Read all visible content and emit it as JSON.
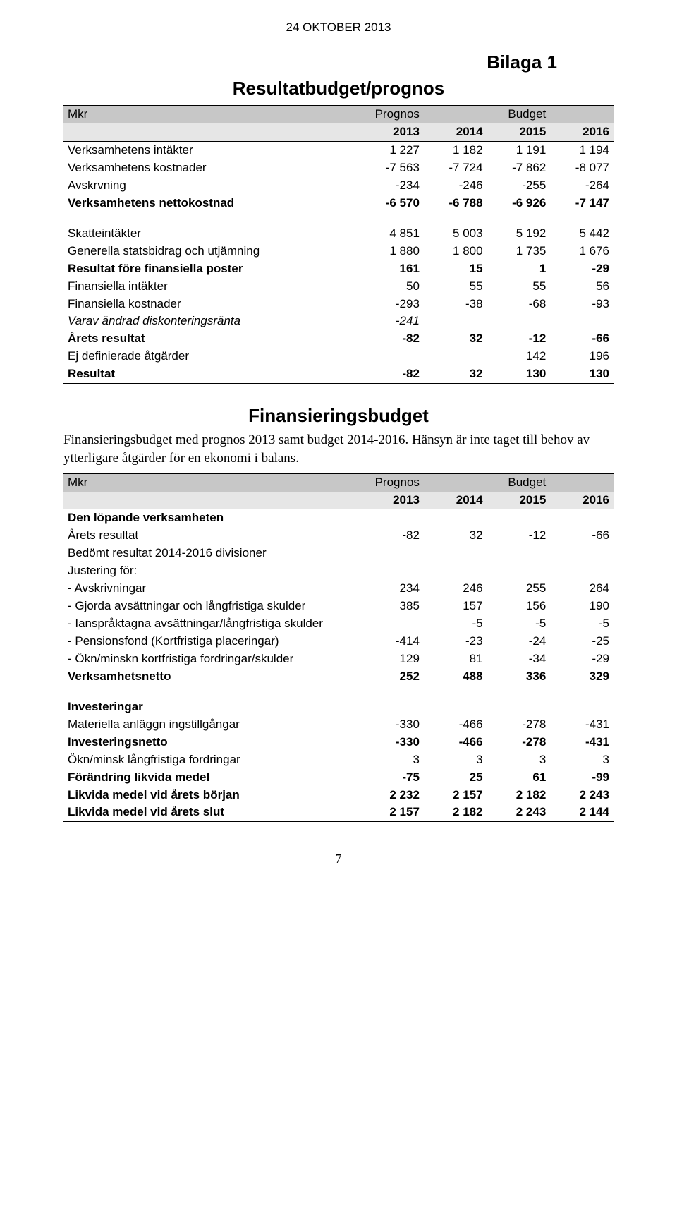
{
  "doc_date": "24 OKTOBER 2013",
  "appendix_label": "Bilaga 1",
  "title1": "Resultatbudget/prognos",
  "header": {
    "mkr": "Mkr",
    "prognos": "Prognos",
    "budget": "Budget",
    "years": [
      "2013",
      "2014",
      "2015",
      "2016"
    ]
  },
  "table1_rows": [
    {
      "label": "Verksamhetens intäkter",
      "v": [
        "1 227",
        "1 182",
        "1 191",
        "1 194"
      ],
      "style": ""
    },
    {
      "label": "Verksamhetens kostnader",
      "v": [
        "-7 563",
        "-7 724",
        "-7 862",
        "-8 077"
      ],
      "style": ""
    },
    {
      "label": "Avskrvning",
      "v": [
        "-234",
        "-246",
        "-255",
        "-264"
      ],
      "style": ""
    },
    {
      "label": "Verksamhetens nettokostnad",
      "v": [
        "-6 570",
        "-6 788",
        "-6 926",
        "-7 147"
      ],
      "style": "bold"
    },
    {
      "label": "",
      "v": [
        "",
        "",
        "",
        ""
      ],
      "style": "spacer"
    },
    {
      "label": "Skatteintäkter",
      "v": [
        "4 851",
        "5 003",
        "5 192",
        "5 442"
      ],
      "style": ""
    },
    {
      "label": "Generella statsbidrag och utjämning",
      "v": [
        "1 880",
        "1 800",
        "1 735",
        "1 676"
      ],
      "style": ""
    },
    {
      "label": "Resultat före finansiella poster",
      "v": [
        "161",
        "15",
        "1",
        "-29"
      ],
      "style": "bold"
    },
    {
      "label": "Finansiella intäkter",
      "v": [
        "50",
        "55",
        "55",
        "56"
      ],
      "style": ""
    },
    {
      "label": "Finansiella kostnader",
      "v": [
        "-293",
        "-38",
        "-68",
        "-93"
      ],
      "style": ""
    },
    {
      "label": " Varav ändrad diskonteringsränta",
      "v": [
        "-241",
        "",
        "",
        ""
      ],
      "style": "italic"
    },
    {
      "label": "Årets resultat",
      "v": [
        "-82",
        "32",
        "-12",
        "-66"
      ],
      "style": "bold"
    },
    {
      "label": "Ej definierade åtgärder",
      "v": [
        "",
        "",
        "142",
        "196"
      ],
      "style": ""
    },
    {
      "label": "Resultat",
      "v": [
        "-82",
        "32",
        "130",
        "130"
      ],
      "style": "bold bottom"
    }
  ],
  "title2": "Finansieringsbudget",
  "paragraph": "Finansieringsbudget med prognos 2013 samt budget 2014-2016. Hänsyn är inte taget till behov av ytterligare åtgärder för en ekonomi i balans.",
  "table2_rows": [
    {
      "label": "Den löpande verksamheten",
      "v": [
        "",
        "",
        "",
        ""
      ],
      "style": "bold"
    },
    {
      "label": "Årets resultat",
      "v": [
        "-82",
        "32",
        "-12",
        "-66"
      ],
      "style": ""
    },
    {
      "label": "Bedömt resultat 2014-2016 divisioner",
      "v": [
        "",
        "",
        "",
        ""
      ],
      "style": ""
    },
    {
      "label": "Justering för:",
      "v": [
        "",
        "",
        "",
        ""
      ],
      "style": ""
    },
    {
      "label": "- Avskrivningar",
      "v": [
        "234",
        "246",
        "255",
        "264"
      ],
      "style": ""
    },
    {
      "label": "- Gjorda avsättningar och långfristiga skulder",
      "v": [
        "385",
        "157",
        "156",
        "190"
      ],
      "style": ""
    },
    {
      "label": "- Ianspråktagna avsättningar/långfristiga skulder",
      "v": [
        "",
        "-5",
        "-5",
        "-5"
      ],
      "style": ""
    },
    {
      "label": "- Pensionsfond (Kortfristiga placeringar)",
      "v": [
        "-414",
        "-23",
        "-24",
        "-25"
      ],
      "style": ""
    },
    {
      "label": "- Ökn/minskn kortfristiga fordringar/skulder",
      "v": [
        "129",
        "81",
        "-34",
        "-29"
      ],
      "style": ""
    },
    {
      "label": "Verksamhetsnetto",
      "v": [
        "252",
        "488",
        "336",
        "329"
      ],
      "style": "bold"
    },
    {
      "label": "",
      "v": [
        "",
        "",
        "",
        ""
      ],
      "style": "spacer"
    },
    {
      "label": "Investeringar",
      "v": [
        "",
        "",
        "",
        ""
      ],
      "style": "bold"
    },
    {
      "label": "Materiella anläggn ingstillgångar",
      "v": [
        "-330",
        "-466",
        "-278",
        "-431"
      ],
      "style": ""
    },
    {
      "label": "Investeringsnetto",
      "v": [
        "-330",
        "-466",
        "-278",
        "-431"
      ],
      "style": "bold"
    },
    {
      "label": "Ökn/minsk långfristiga fordringar",
      "v": [
        "3",
        "3",
        "3",
        "3"
      ],
      "style": ""
    },
    {
      "label": "Förändring likvida medel",
      "v": [
        "-75",
        "25",
        "61",
        "-99"
      ],
      "style": "bold"
    },
    {
      "label": "Likvida medel vid årets början",
      "v": [
        "2 232",
        "2 157",
        "2 182",
        "2 243"
      ],
      "style": "bold"
    },
    {
      "label": "Likvida medel vid årets slut",
      "v": [
        "2 157",
        "2 182",
        "2 243",
        "2 144"
      ],
      "style": "bold bottom"
    }
  ],
  "page_number": "7",
  "colors": {
    "header_bg1": "#c7c7c7",
    "header_bg2": "#e6e6e6",
    "text": "#000000",
    "border": "#000000",
    "page_bg": "#ffffff"
  },
  "fonts": {
    "body_family": "Arial, Helvetica, sans-serif",
    "paragraph_family": "Times New Roman, Times, serif",
    "base_size_pt": 13,
    "heading_size_pt": 20
  }
}
